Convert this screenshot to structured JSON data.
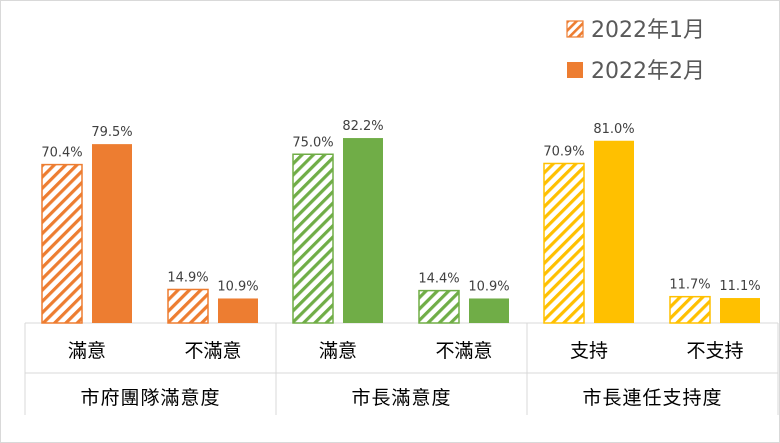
{
  "chart_data": {
    "type": "bar",
    "series": [
      {
        "name": "2022年1月",
        "pattern": "hatched"
      },
      {
        "name": "2022年2月",
        "pattern": "solid"
      }
    ],
    "groups": [
      {
        "label": "市府團隊滿意度",
        "color": "#ed7d31",
        "categories": [
          {
            "label": "滿意",
            "values": [
              70.4,
              79.5
            ],
            "value_labels": [
              "70.4%",
              "79.5%"
            ]
          },
          {
            "label": "不滿意",
            "values": [
              14.9,
              10.9
            ],
            "value_labels": [
              "14.9%",
              "10.9%"
            ]
          }
        ]
      },
      {
        "label": "市長滿意度",
        "color": "#70ad47",
        "categories": [
          {
            "label": "滿意",
            "values": [
              75.0,
              82.2
            ],
            "value_labels": [
              "75.0%",
              "82.2%"
            ]
          },
          {
            "label": "不滿意",
            "values": [
              14.4,
              10.9
            ],
            "value_labels": [
              "14.4%",
              "10.9%"
            ]
          }
        ]
      },
      {
        "label": "市長連任支持度",
        "color": "#ffc000",
        "categories": [
          {
            "label": "支持",
            "values": [
              70.9,
              81.0
            ],
            "value_labels": [
              "70.9%",
              "81.0%"
            ]
          },
          {
            "label": "不支持",
            "values": [
              11.7,
              11.1
            ],
            "value_labels": [
              "11.7%",
              "11.1%"
            ]
          }
        ]
      }
    ],
    "unit": "%",
    "ylim": [
      0,
      100
    ],
    "grid": false,
    "legend_position": "top-right",
    "legend_color": "#ed7d31"
  }
}
